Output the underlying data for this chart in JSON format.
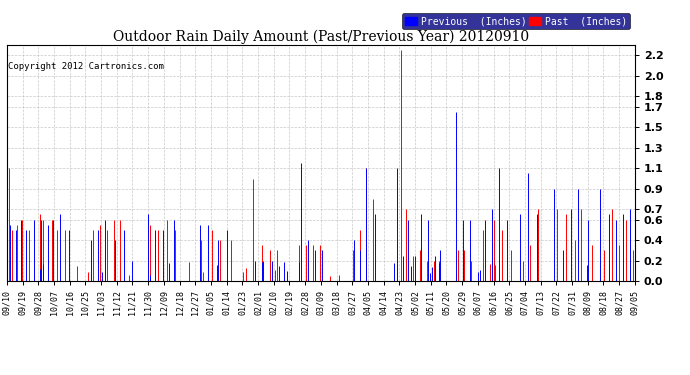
{
  "title": "Outdoor Rain Daily Amount (Past/Previous Year) 20120910",
  "copyright": "Copyright 2012 Cartronics.com",
  "legend_previous": "Previous  (Inches)",
  "legend_past": "Past  (Inches)",
  "color_previous": "#0000ff",
  "color_past": "#ff0000",
  "background_color": "#ffffff",
  "plot_bg_color": "#ffffff",
  "grid_color": "#bbbbbb",
  "ylim": [
    0.0,
    2.3
  ],
  "yticks": [
    0.0,
    0.2,
    0.4,
    0.6,
    0.7,
    0.9,
    1.1,
    1.3,
    1.5,
    1.7,
    1.8,
    2.0,
    2.2
  ],
  "x_labels": [
    "09/10",
    "09/19",
    "09/28",
    "10/07",
    "10/16",
    "10/25",
    "11/03",
    "11/12",
    "11/21",
    "11/30",
    "12/09",
    "12/18",
    "12/27",
    "01/05",
    "01/14",
    "01/23",
    "02/01",
    "02/10",
    "02/19",
    "02/28",
    "03/09",
    "03/18",
    "03/27",
    "04/05",
    "04/14",
    "04/23",
    "05/02",
    "05/11",
    "05/20",
    "05/29",
    "06/07",
    "06/16",
    "06/25",
    "07/04",
    "07/13",
    "07/22",
    "07/31",
    "08/09",
    "08/18",
    "08/27",
    "09/05"
  ]
}
